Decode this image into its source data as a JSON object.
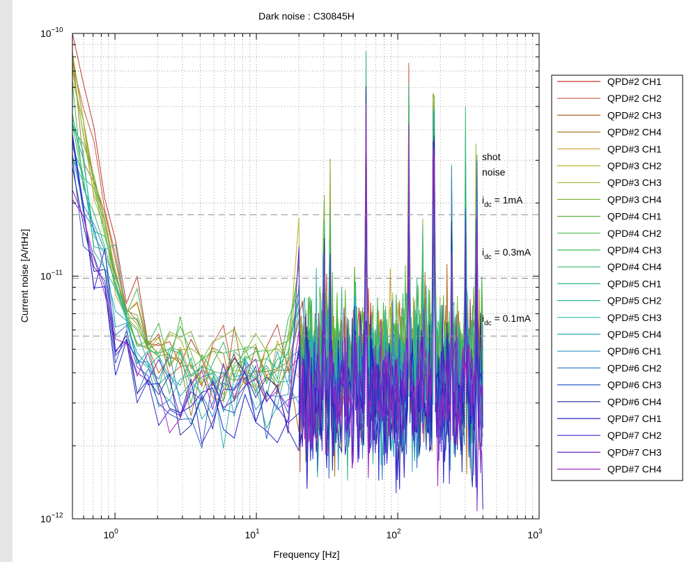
{
  "chart_data": {
    "type": "line",
    "title": "Dark noise : C30845H",
    "xlabel": "Frequency [Hz]",
    "ylabel": "Current noise [A/rtHz]",
    "x_scale": "log",
    "y_scale": "log",
    "xlim": [
      0.5,
      1000
    ],
    "ylim": [
      1e-12,
      1e-10
    ],
    "grid": true,
    "legend_position": "outside-right",
    "x_ticks": [
      {
        "value": 1,
        "base": "10",
        "exp": "0"
      },
      {
        "value": 10,
        "base": "10",
        "exp": "1"
      },
      {
        "value": 100,
        "base": "10",
        "exp": "2"
      },
      {
        "value": 1000,
        "base": "10",
        "exp": "3"
      }
    ],
    "y_ticks": [
      {
        "value": 1e-12,
        "base": "10",
        "exp": "−12"
      },
      {
        "value": 1e-11,
        "base": "10",
        "exp": "−11"
      },
      {
        "value": 1e-10,
        "base": "10",
        "exp": "−10"
      }
    ],
    "annotations": {
      "shot_line1": "shot",
      "shot_line2": "noise",
      "i_1ma": {
        "main": "i",
        "sub": "dc",
        "rest": " = 1mA"
      },
      "i_03ma": {
        "main": "i",
        "sub": "dc",
        "rest": " = 0.3mA"
      },
      "i_01ma": {
        "main": "i",
        "sub": "dc",
        "rest": " = 0.1mA"
      }
    },
    "reference_lines": [
      {
        "label": "1mA",
        "value": 1.79e-11
      },
      {
        "label": "0.3mA",
        "value": 9.8e-12
      },
      {
        "label": "0.1mA",
        "value": 5.66e-12
      }
    ],
    "x_max_data": 400,
    "peaks": [
      {
        "x": 20.0,
        "amp": 1.9
      },
      {
        "x": 30.0,
        "amp": 2.4
      },
      {
        "x": 33.3,
        "amp": 3.2
      },
      {
        "x": 50.0,
        "amp": 1.8
      },
      {
        "x": 60.0,
        "amp": 9.0
      },
      {
        "x": 120.0,
        "amp": 9.0
      },
      {
        "x": 150.0,
        "amp": 2.2
      },
      {
        "x": 180.0,
        "amp": 7.5
      },
      {
        "x": 240.0,
        "amp": 5.5
      },
      {
        "x": 300.0,
        "amp": 4.5
      },
      {
        "x": 360.0,
        "amp": 3.0
      }
    ],
    "series": [
      {
        "name": "QPD#2 CH1",
        "color": "#c0392b",
        "low_freq": 9e-11,
        "floor": 4.3e-12
      },
      {
        "name": "QPD#2 CH2",
        "color": "#c8553d",
        "low_freq": 8.4e-11,
        "floor": 4.1e-12
      },
      {
        "name": "QPD#2 CH3",
        "color": "#b5651d",
        "low_freq": 7.8e-11,
        "floor": 4e-12
      },
      {
        "name": "QPD#2 CH4",
        "color": "#a57a2a",
        "low_freq": 7.2e-11,
        "floor": 3.9e-12
      },
      {
        "name": "QPD#3 CH1",
        "color": "#c89d30",
        "low_freq": 6.8e-11,
        "floor": 4.2e-12
      },
      {
        "name": "QPD#3 CH2",
        "color": "#b8b030",
        "low_freq": 6.2e-11,
        "floor": 4e-12
      },
      {
        "name": "QPD#3 CH3",
        "color": "#9ab52e",
        "low_freq": 5.8e-11,
        "floor": 4.4e-12
      },
      {
        "name": "QPD#3 CH4",
        "color": "#7ab535",
        "low_freq": 5.4e-11,
        "floor": 4.5e-12
      },
      {
        "name": "QPD#4 CH1",
        "color": "#5ab53a",
        "low_freq": 5e-11,
        "floor": 4.6e-12
      },
      {
        "name": "QPD#4 CH2",
        "color": "#48b848",
        "low_freq": 4.6e-11,
        "floor": 4.4e-12
      },
      {
        "name": "QPD#4 CH3",
        "color": "#3cb85a",
        "low_freq": 4.3e-11,
        "floor": 4.3e-12
      },
      {
        "name": "QPD#4 CH4",
        "color": "#35b86e",
        "low_freq": 4e-11,
        "floor": 4.2e-12
      },
      {
        "name": "QPD#5 CH1",
        "color": "#30b583",
        "low_freq": 3.8e-11,
        "floor": 4.1e-12
      },
      {
        "name": "QPD#5 CH2",
        "color": "#2cb89a",
        "low_freq": 3.6e-11,
        "floor": 3.6e-12
      },
      {
        "name": "QPD#5 CH3",
        "color": "#28b5ae",
        "low_freq": 3.4e-11,
        "floor": 3.5e-12
      },
      {
        "name": "QPD#5 CH4",
        "color": "#28a8b8",
        "low_freq": 3.2e-11,
        "floor": 3.4e-12
      },
      {
        "name": "QPD#6 CH1",
        "color": "#2b95c0",
        "low_freq": 3e-11,
        "floor": 3.3e-12
      },
      {
        "name": "QPD#6 CH2",
        "color": "#3a7fc8",
        "low_freq": 2.9e-11,
        "floor": 3.2e-12
      },
      {
        "name": "QPD#6 CH3",
        "color": "#2f5fc0",
        "low_freq": 2.8e-11,
        "floor": 3e-12
      },
      {
        "name": "QPD#6 CH4",
        "color": "#1f2f9a",
        "low_freq": 2.7e-11,
        "floor": 2.9e-12
      },
      {
        "name": "QPD#7 CH1",
        "color": "#2020c8",
        "low_freq": 2.6e-11,
        "floor": 2.8e-12
      },
      {
        "name": "QPD#7 CH2",
        "color": "#3a2ad0",
        "low_freq": 2.5e-11,
        "floor": 3e-12
      },
      {
        "name": "QPD#7 CH3",
        "color": "#6a28c8",
        "low_freq": 2.4e-11,
        "floor": 3.1e-12
      },
      {
        "name": "QPD#7 CH4",
        "color": "#a028c0",
        "low_freq": 2.3e-11,
        "floor": 3.2e-12
      }
    ]
  }
}
